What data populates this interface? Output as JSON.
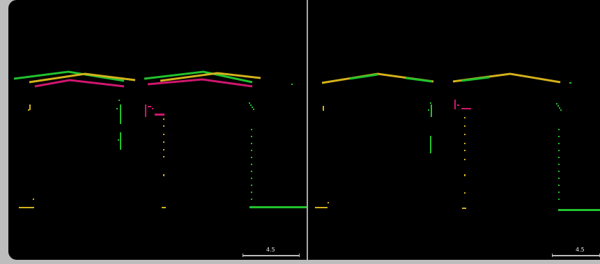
{
  "viewer": {
    "left_panel": {
      "scale_label": "4.5"
    },
    "right_panel": {
      "scale_label": "4.5"
    }
  },
  "colors": {
    "green": "#22c22e",
    "yellow": "#d4b21c",
    "magenta": "#d1166f",
    "background": "#000000",
    "divider": "#a9a9a9"
  }
}
